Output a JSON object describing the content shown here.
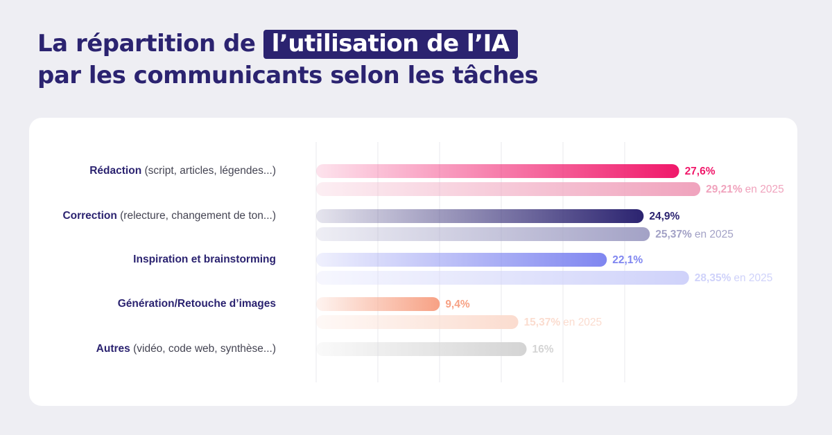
{
  "title": {
    "part1": "La répartition de",
    "highlight": "l’utilisation de l’IA",
    "line2": "par les communicants selon les tâches"
  },
  "chart_data": {
    "type": "bar",
    "orientation": "horizontal",
    "grid": true,
    "xlim": [
      0,
      33
    ],
    "categories": [
      {
        "name": "Rédaction",
        "detail": "(script, articles, légendes...)",
        "value": 27.6,
        "value_label": "27,6%",
        "value_2025": 29.21,
        "value_2025_label": "29,21%",
        "suffix_2025": "en 2025",
        "color": "#f0186a",
        "color_2025": "#f0a3bd"
      },
      {
        "name": "Correction",
        "detail": "(relecture, changement de ton...)",
        "value": 24.9,
        "value_label": "24,9%",
        "value_2025": 25.37,
        "value_2025_label": "25,37%",
        "suffix_2025": "en 2025",
        "color": "#2b2370",
        "color_2025": "#a3a2c6"
      },
      {
        "name": "Inspiration et brainstorming",
        "detail": "",
        "value": 22.1,
        "value_label": "22,1%",
        "value_2025": 28.35,
        "value_2025_label": "28,35%",
        "suffix_2025": "en 2025",
        "color": "#7f86f0",
        "color_2025": "#cfd2fa"
      },
      {
        "name": "Génération/Retouche d’images",
        "detail": "",
        "value": 9.4,
        "value_label": "9,4%",
        "value_2025": 15.37,
        "value_2025_label": "15,37%",
        "suffix_2025": "en 2025",
        "color": "#f7a184",
        "color_2025": "#fbdccf"
      },
      {
        "name": "Autres",
        "detail": "(vidéo, code web, synthèse...)",
        "value": 16,
        "value_label": "16%",
        "value_2025": null,
        "value_2025_label": "",
        "suffix_2025": "",
        "color": "#d4d4d4",
        "color_2025": ""
      }
    ]
  }
}
